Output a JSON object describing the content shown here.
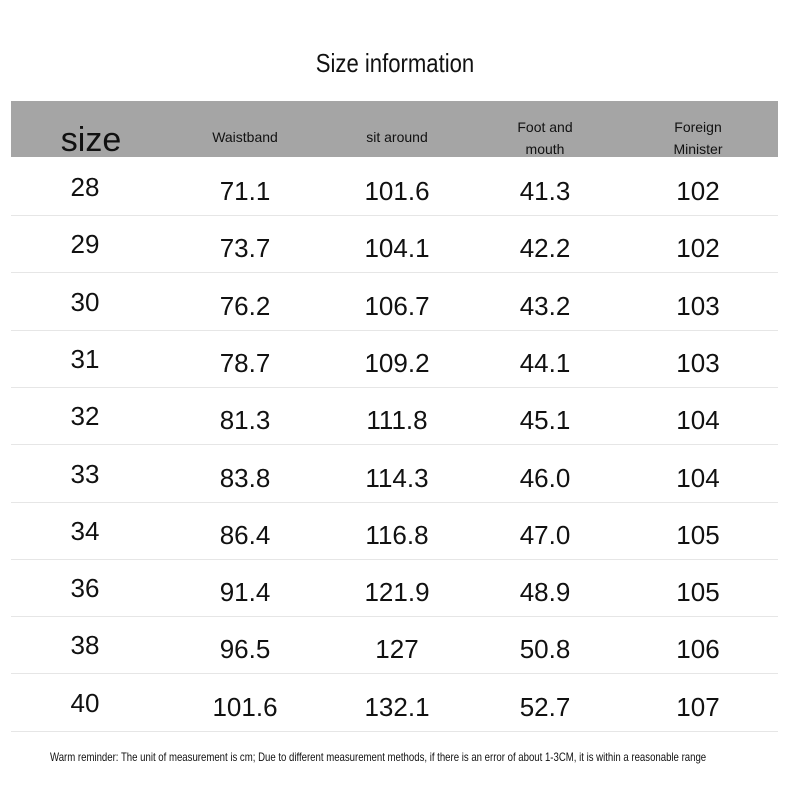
{
  "title": "Size information",
  "table": {
    "header": [
      "size",
      "Waistband",
      "sit around",
      "Foot and mouth",
      "Foreign Minister"
    ],
    "rows": [
      [
        "28",
        "71.1",
        "101.6",
        "41.3",
        "102"
      ],
      [
        "29",
        "73.7",
        "104.1",
        "42.2",
        "102"
      ],
      [
        "30",
        "76.2",
        "106.7",
        "43.2",
        "103"
      ],
      [
        "31",
        "78.7",
        "109.2",
        "44.1",
        "103"
      ],
      [
        "32",
        "81.3",
        "111.8",
        "45.1",
        "104"
      ],
      [
        "33",
        "83.8",
        "114.3",
        "46.0",
        "104"
      ],
      [
        "34",
        "86.4",
        "116.8",
        "47.0",
        "105"
      ],
      [
        "36",
        "91.4",
        "121.9",
        "48.9",
        "105"
      ],
      [
        "38",
        "96.5",
        "127",
        "50.8",
        "106"
      ],
      [
        "40",
        "101.6",
        "132.1",
        "52.7",
        "107"
      ]
    ]
  },
  "footer": "Warm reminder: The unit of measurement is cm; Due to different measurement methods, if there is an error of about 1-3CM, it is within a reasonable range"
}
